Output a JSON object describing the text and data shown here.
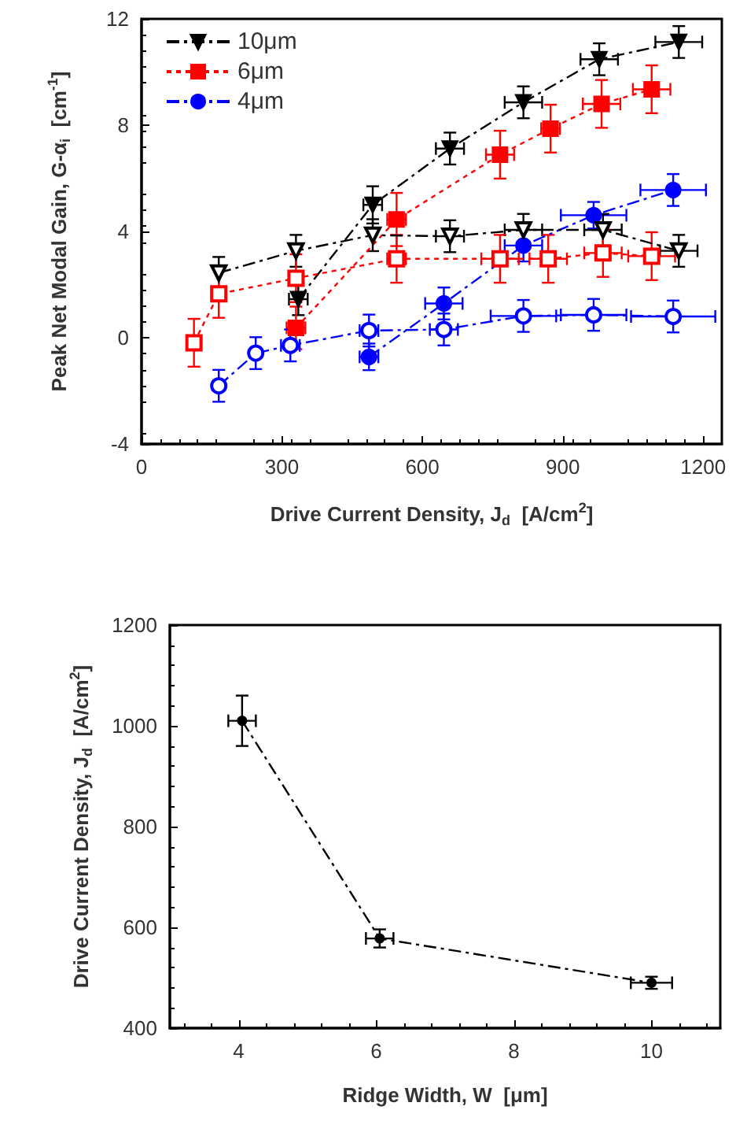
{
  "chart_data": [
    {
      "type": "line",
      "xlabel": "Drive Current Density, J$_{d}$  [A/cm$^{2}$]",
      "ylabel": "Peak Net Modal Gain, G-α$_{i}$  [cm$^{-1}$]",
      "xlim": [
        0,
        1240
      ],
      "ylim": [
        -4,
        12
      ],
      "xticks": [
        0,
        300,
        600,
        900,
        1200
      ],
      "yticks": [
        -4,
        0,
        4,
        8,
        12
      ],
      "grid": false,
      "legend": "top left",
      "series": [
        {
          "name": "10μm",
          "color": "#000000",
          "marker": "triangle",
          "line_style": "dashed",
          "x": [
            335,
            494,
            659,
            816,
            978,
            1148
          ],
          "values": [
            1.45,
            5.0,
            7.12,
            8.86,
            10.48,
            11.13
          ],
          "errors": [
            0.6,
            0.7,
            0.6,
            0.6,
            0.6,
            0.6
          ],
          "xerrors": [
            20,
            20,
            30,
            40,
            40,
            50
          ]
        },
        {
          "name": "6μm",
          "color": "#ff0000",
          "marker": "square",
          "line_style": "dotted",
          "x": [
            330,
            545,
            766,
            874,
            983,
            1090
          ],
          "values": [
            0.37,
            4.45,
            6.89,
            7.87,
            8.8,
            9.35
          ],
          "errors": [
            0.8,
            1.0,
            0.9,
            0.9,
            0.9,
            0.9
          ],
          "xerrors": [
            20,
            20,
            30,
            20,
            40,
            40
          ]
        },
        {
          "name": "4μm",
          "color": "#0000ff",
          "marker": "circle",
          "line_style": "dashed",
          "x": [
            486,
            646,
            816,
            966,
            1136
          ],
          "values": [
            -0.72,
            1.29,
            3.47,
            4.61,
            5.56
          ],
          "errors": [
            0.5,
            0.6,
            0.6,
            0.5,
            0.6
          ],
          "xerrors": [
            20,
            40,
            40,
            70,
            70
          ]
        },
        {
          "color": "#000000",
          "marker": "triangle",
          "line_style": "dashed",
          "x": [
            165,
            330,
            494,
            659,
            816,
            986,
            1148
          ],
          "values": [
            2.44,
            3.27,
            3.86,
            3.82,
            4.06,
            4.06,
            3.27
          ],
          "errors": [
            0.6,
            0.6,
            0.6,
            0.6,
            0.6,
            0.6,
            0.6
          ],
          "xerrors": [
            null,
            null,
            null,
            30,
            40,
            40,
            40
          ]
        },
        {
          "color": "#ff0000",
          "marker": "square",
          "line_style": "dotted",
          "x": [
            112,
            165,
            330,
            545,
            766,
            869,
            986,
            1090
          ],
          "values": [
            -0.19,
            1.65,
            2.24,
            2.97,
            2.97,
            2.97,
            3.19,
            3.07
          ],
          "errors": [
            0.9,
            0.9,
            0.9,
            0.9,
            0.9,
            0.9,
            0.9,
            0.9
          ],
          "xerrors": [
            null,
            null,
            null,
            20,
            40,
            40,
            40,
            50
          ]
        },
        {
          "color": "#0000ff",
          "marker": "circle",
          "line_style": "dashed",
          "x": [
            165,
            244,
            318,
            486,
            646,
            816,
            966,
            1136
          ],
          "values": [
            -1.81,
            -0.58,
            -0.29,
            0.27,
            0.31,
            0.82,
            0.86,
            0.8
          ],
          "errors": [
            0.6,
            0.6,
            0.6,
            0.6,
            0.6,
            0.6,
            0.6,
            0.6
          ],
          "xerrors": [
            null,
            null,
            20,
            20,
            30,
            70,
            70,
            90
          ]
        }
      ]
    },
    {
      "type": "line",
      "xlabel": "Ridge Width, W  [μm]",
      "ylabel": "Drive Current Density, J$_{d}$  [A/cm$^{2}$]",
      "xlim": [
        3,
        11
      ],
      "ylim": [
        400,
        1200
      ],
      "xticks": [
        4,
        6,
        8,
        10
      ],
      "yticks": [
        400,
        600,
        800,
        1000,
        1200
      ],
      "grid": false,
      "legend": false,
      "series": [
        {
          "color": "#000000",
          "marker": "circle",
          "line_style": "dashed",
          "x": [
            4.05,
            6.05,
            10
          ],
          "values": [
            1010,
            578,
            490
          ],
          "errors": [
            50,
            18,
            12
          ],
          "xerrors": [
            0.2,
            0.2,
            0.3
          ]
        }
      ]
    }
  ]
}
